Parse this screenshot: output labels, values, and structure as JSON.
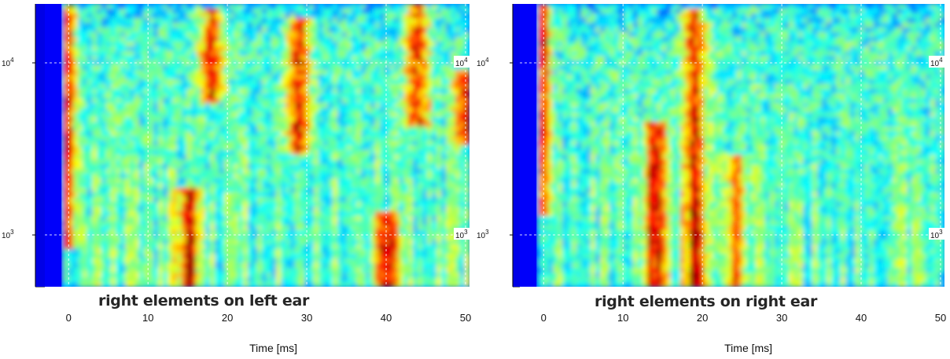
{
  "chart_data": [
    {
      "type": "heatmap",
      "caption": "right elements on left ear",
      "xlabel": "Time [ms]",
      "xlim": [
        -3,
        50.5
      ],
      "xticks": [
        0,
        10,
        20,
        30,
        40,
        50
      ],
      "y_scale": "log",
      "ylim": [
        500,
        22000
      ],
      "yticks": [
        {
          "value": 1000,
          "base": "10",
          "exp": "3"
        },
        {
          "value": 10000,
          "base": "10",
          "exp": "4"
        }
      ],
      "colormap": "jet",
      "grid": true,
      "hot_regions": [
        {
          "t": 0,
          "f_low": 1000,
          "f_high": 20000,
          "level": "high"
        },
        {
          "t": 15,
          "f_low": 500,
          "f_high": 1600,
          "level": "high"
        },
        {
          "t": 18,
          "f_low": 7000,
          "f_high": 18000,
          "level": "high"
        },
        {
          "t": 29,
          "f_low": 3500,
          "f_high": 16000,
          "level": "high"
        },
        {
          "t": 40,
          "f_low": 500,
          "f_high": 1200,
          "level": "high"
        },
        {
          "t": 44,
          "f_low": 5000,
          "f_high": 20000,
          "level": "high"
        },
        {
          "t": 50,
          "f_low": 4000,
          "f_high": 8000,
          "level": "high"
        }
      ]
    },
    {
      "type": "heatmap",
      "caption": "right elements on right ear",
      "xlabel": "Time [ms]",
      "xlim": [
        -3,
        50.5
      ],
      "xticks": [
        0,
        10,
        20,
        30,
        40,
        50
      ],
      "y_scale": "log",
      "ylim": [
        500,
        22000
      ],
      "yticks": [
        {
          "value": 1000,
          "base": "10",
          "exp": "3"
        },
        {
          "value": 10000,
          "base": "10",
          "exp": "4"
        }
      ],
      "colormap": "jet",
      "grid": true,
      "hot_regions": [
        {
          "t": 0,
          "f_low": 1500,
          "f_high": 22000,
          "level": "high"
        },
        {
          "t": 14,
          "f_low": 500,
          "f_high": 4000,
          "level": "high"
        },
        {
          "t": 19,
          "f_low": 500,
          "f_high": 18000,
          "level": "high"
        },
        {
          "t": 24,
          "f_low": 500,
          "f_high": 2500,
          "level": "medium"
        }
      ]
    }
  ]
}
